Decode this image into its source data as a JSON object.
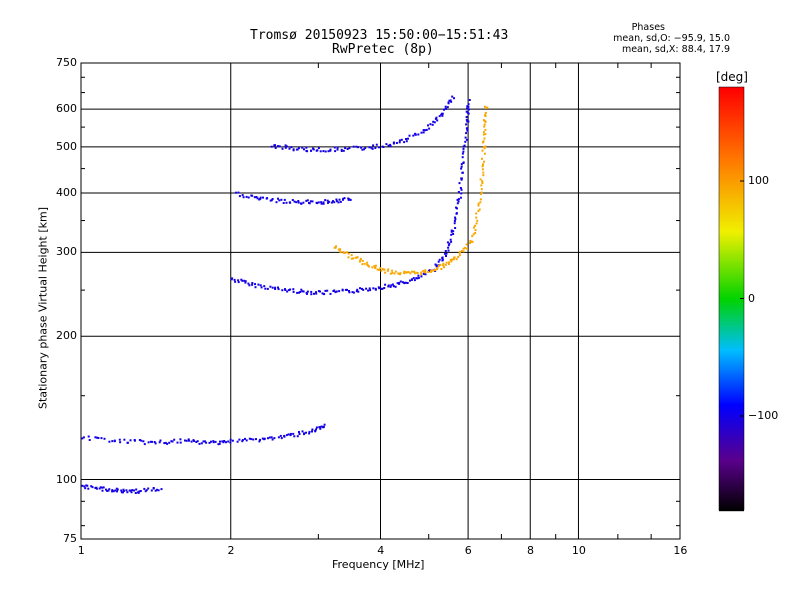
{
  "header": {
    "line1": "Tromsø 20150923 15:50:00−15:51:43",
    "line2": "RwPretec (8p)"
  },
  "phase_box": {
    "title": "Phases",
    "o_line": "mean, sd,O: −95.9, 15.0",
    "x_line": "mean, sd,X:  88.4, 17.9"
  },
  "colorbar": {
    "label": "[deg]",
    "ticks": [
      "100",
      "0",
      "−100"
    ],
    "tick_values": [
      100,
      0,
      -100
    ],
    "range": [
      -180,
      180
    ]
  },
  "colors": {
    "dominant_blue": "#1a2ae0",
    "trace_yellow": "#e8ee10",
    "gridlines": "#000000"
  },
  "chart_data": {
    "type": "scatter",
    "title": "Tromsø 20150923 15:50:00−15:51:43",
    "subtitle": "RwPretec (8p)",
    "xlabel": "Frequency [MHz]",
    "ylabel": "Stationary phase Virtual Height [km]",
    "xscale": "log",
    "yscale": "log",
    "xlim": [
      1,
      16
    ],
    "ylim": [
      75,
      750
    ],
    "xticks": [
      1,
      2,
      4,
      6,
      8,
      10,
      16
    ],
    "xtick_labels": [
      "1",
      "2",
      "4",
      "6",
      "8",
      "10",
      "16"
    ],
    "yticks": [
      75,
      100,
      200,
      300,
      400,
      500,
      600,
      750
    ],
    "ytick_labels": [
      "75",
      "100",
      "200",
      "300",
      "400",
      "500",
      "600",
      "750"
    ],
    "grid": true,
    "color_scale": {
      "label": "[deg]",
      "min": -180,
      "max": 180
    },
    "series": [
      {
        "trace_type": "O-mode F-layer trace (lower)",
        "phase": -100,
        "points": [
          [
            2.0,
            265
          ],
          [
            2.2,
            258
          ],
          [
            2.5,
            252
          ],
          [
            2.8,
            249
          ],
          [
            3.1,
            248
          ],
          [
            3.5,
            250
          ],
          [
            3.9,
            254
          ],
          [
            4.3,
            258
          ],
          [
            4.7,
            265
          ],
          [
            5.1,
            278
          ],
          [
            5.4,
            300
          ],
          [
            5.6,
            340
          ],
          [
            5.75,
            400
          ],
          [
            5.85,
            470
          ],
          [
            5.95,
            560
          ],
          [
            6.0,
            630
          ]
        ]
      },
      {
        "trace_type": "X-mode F-layer trace",
        "phase": 95,
        "points": [
          [
            3.2,
            310
          ],
          [
            3.5,
            295
          ],
          [
            3.8,
            282
          ],
          [
            4.1,
            275
          ],
          [
            4.5,
            272
          ],
          [
            4.9,
            274
          ],
          [
            5.3,
            282
          ],
          [
            5.7,
            295
          ],
          [
            6.1,
            320
          ],
          [
            6.3,
            380
          ],
          [
            6.4,
            460
          ],
          [
            6.45,
            540
          ],
          [
            6.5,
            620
          ]
        ]
      },
      {
        "trace_type": "second hop trace",
        "phase": -100,
        "points": [
          [
            2.4,
            505
          ],
          [
            2.7,
            497
          ],
          [
            3.0,
            495
          ],
          [
            3.4,
            497
          ],
          [
            3.9,
            502
          ],
          [
            4.4,
            515
          ],
          [
            4.9,
            545
          ],
          [
            5.3,
            590
          ],
          [
            5.6,
            640
          ]
        ]
      },
      {
        "trace_type": "sporadic trace",
        "phase": -100,
        "points": [
          [
            2.05,
            400
          ],
          [
            2.3,
            390
          ],
          [
            2.6,
            385
          ],
          [
            2.9,
            384
          ],
          [
            3.2,
            386
          ],
          [
            3.5,
            390
          ]
        ]
      },
      {
        "trace_type": "low trace",
        "phase": -100,
        "points": [
          [
            1.0,
            123
          ],
          [
            1.2,
            121
          ],
          [
            1.4,
            120
          ],
          [
            1.6,
            121
          ],
          [
            1.8,
            120
          ],
          [
            2.0,
            121
          ],
          [
            2.3,
            122
          ],
          [
            2.6,
            124
          ],
          [
            2.9,
            127
          ],
          [
            3.1,
            130
          ]
        ]
      },
      {
        "trace_type": "E-layer trace",
        "phase": -100,
        "points": [
          [
            1.0,
            97
          ],
          [
            1.1,
            96
          ],
          [
            1.2,
            95
          ],
          [
            1.3,
            95
          ],
          [
            1.45,
            96
          ]
        ]
      }
    ]
  }
}
